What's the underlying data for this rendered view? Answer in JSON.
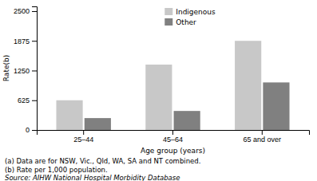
{
  "chart_data": {
    "type": "bar",
    "categories": [
      "25–44",
      "45–64",
      "65 and over"
    ],
    "series": [
      {
        "name": "Indigenous",
        "color": "#c8c8c8",
        "values": [
          625,
          1375,
          1875
        ]
      },
      {
        "name": "Other",
        "color": "#808080",
        "values": [
          250,
          400,
          1000
        ]
      }
    ],
    "ylabel": "Rate(b)",
    "xlabel": "Age group (years)",
    "ylim": [
      0,
      2600
    ],
    "yticks": [
      0,
      625,
      1250,
      1875,
      2500
    ],
    "grid": false,
    "legend": "upper center",
    "annotations": [
      "(a) Data are for NSW, Vic., Qld, WA, SA and NT combined.",
      "(b) Rate per 1,000 population.",
      "Source: AIHW National Hospital Morbidity Database"
    ]
  }
}
